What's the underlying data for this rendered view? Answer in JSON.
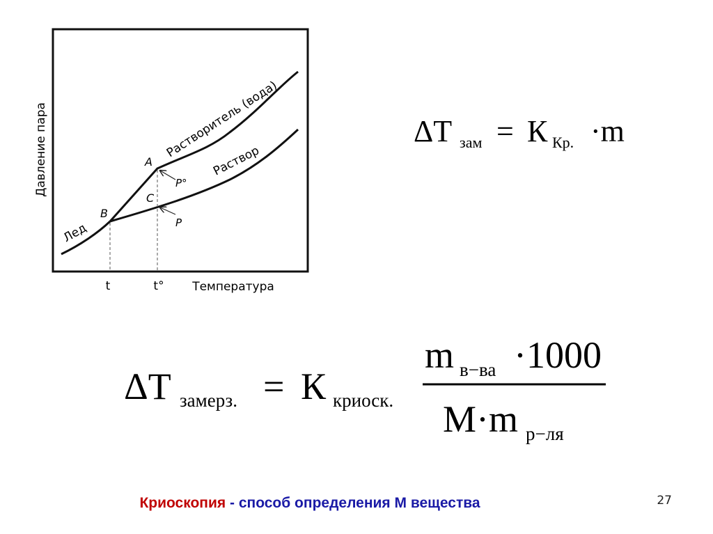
{
  "diagram": {
    "y_axis_label": "Давление пара",
    "x_axis_label": "Температура",
    "solvent_curve_label": "Растворитель (вода)",
    "solution_curve_label": "Раствор",
    "ice_curve_label": "Лед",
    "point_a": "A",
    "point_b": "B",
    "point_c": "C",
    "pressure_solvent": "P°",
    "pressure_solution": "P",
    "temp_solution": "t",
    "temp_solvent": "t°"
  },
  "formula_short": {
    "delta_t": "ΔT",
    "sub_t": "зам",
    "equals": "=",
    "k": "К",
    "sub_k": "Кр.",
    "tail": "·m"
  },
  "formula_full": {
    "delta_t": "ΔT",
    "sub_t": "замерз.",
    "equals": "=",
    "k": "К",
    "sub_k": "криоск.",
    "num_m": "m",
    "num_sub": "в−ва",
    "num_tail": "·1000",
    "den_main": "M·m",
    "den_sub": "р−ля"
  },
  "caption": {
    "term": "Криоскопия",
    "dash": "-",
    "text": "способ определения М вещества"
  },
  "page_number": "27"
}
